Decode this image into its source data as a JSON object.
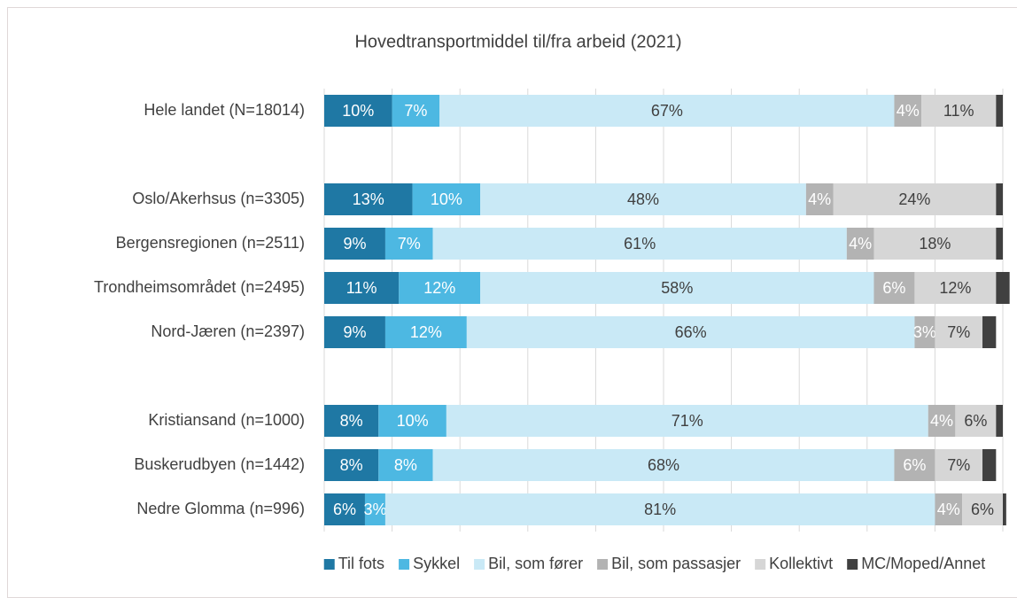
{
  "chart_data": {
    "type": "stacked-bar-horizontal",
    "title": "Hovedtransportmiddel til/fra arbeid (2021)",
    "categories": [
      "Hele landet (N=18014)",
      null,
      "Oslo/Akerhsus (n=3305)",
      "Bergensregionen (n=2511)",
      "Trondheimsområdet (n=2495)",
      "Nord-Jæren (n=2397)",
      null,
      "Kristiansand (n=1000)",
      "Buskerudbyen (n=1442)",
      "Nedre Glomma (n=996)"
    ],
    "series": [
      {
        "name": "Til fots",
        "color": "#1f78a4",
        "label_color": "#ffffff",
        "values": [
          10,
          null,
          13,
          9,
          11,
          9,
          null,
          8,
          8,
          6
        ],
        "value_labels": [
          "10%",
          null,
          "13%",
          "9%",
          "11%",
          "9%",
          null,
          "8%",
          "8%",
          "6%"
        ]
      },
      {
        "name": "Sykkel",
        "color": "#4db8e2",
        "label_color": "#ffffff",
        "values": [
          7,
          null,
          10,
          7,
          12,
          12,
          null,
          10,
          8,
          3
        ],
        "value_labels": [
          "7%",
          null,
          "10%",
          "7%",
          "12%",
          "12%",
          null,
          "10%",
          "8%",
          "3%"
        ]
      },
      {
        "name": "Bil, som fører",
        "color": "#c9e9f6",
        "label_color": "#404040",
        "values": [
          67,
          null,
          48,
          61,
          58,
          66,
          null,
          71,
          68,
          81
        ],
        "value_labels": [
          "67%",
          null,
          "48%",
          "61%",
          "58%",
          "66%",
          null,
          "71%",
          "68%",
          "81%"
        ]
      },
      {
        "name": "Bil, som passasjer",
        "color": "#b3b3b3",
        "label_color": "#ffffff",
        "values": [
          4,
          null,
          4,
          4,
          6,
          3,
          null,
          4,
          6,
          4
        ],
        "value_labels": [
          "4%",
          null,
          "4%",
          "4%",
          "6%",
          "3%",
          null,
          "4%",
          "6%",
          "4%"
        ]
      },
      {
        "name": "Kollektivt",
        "color": "#d6d6d6",
        "label_color": "#404040",
        "values": [
          11,
          null,
          24,
          18,
          12,
          7,
          null,
          6,
          7,
          6
        ],
        "value_labels": [
          "11%",
          null,
          "24%",
          "18%",
          "12%",
          "7%",
          null,
          "6%",
          "7%",
          "6%"
        ]
      },
      {
        "name": "MC/Moped/Annet",
        "color": "#404040",
        "values": [
          1,
          null,
          1,
          1,
          2,
          2,
          null,
          1,
          2,
          0.5
        ]
      }
    ],
    "xlim": [
      0,
      100
    ],
    "xticks": [
      0,
      10,
      20,
      30,
      40,
      50,
      60,
      70,
      80,
      90,
      100
    ],
    "grid": true,
    "legend": "bottom"
  }
}
